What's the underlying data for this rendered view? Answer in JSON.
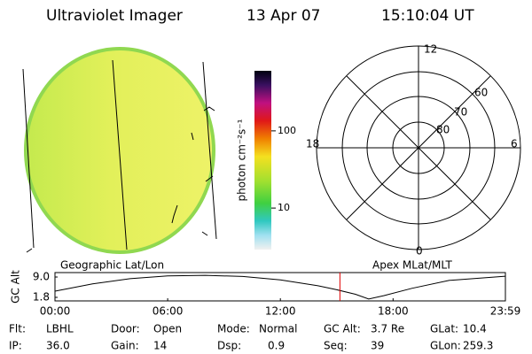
{
  "header": {
    "instrument": "Ultraviolet Imager",
    "date": "13 Apr 07",
    "time": "15:10:04 UT"
  },
  "colorbar": {
    "label": "photon cm⁻²s⁻¹",
    "log": true,
    "lim": [
      2.9,
      600
    ],
    "ticks": [
      10,
      100
    ]
  },
  "polar": {
    "labels": [
      "12",
      "6",
      "0",
      "18"
    ],
    "rings": [
      "60",
      "70",
      "80"
    ]
  },
  "image_caption": "Geographic Lat/Lon",
  "polar_caption": "Apex MLat/MLT",
  "altitude_plot": {
    "ylabel": "GC Alt",
    "x": [
      0,
      2,
      4,
      6,
      8,
      10,
      12,
      14,
      15,
      16,
      16.7,
      17.5,
      19,
      21,
      23.98
    ],
    "values": [
      4.0,
      6.6,
      8.4,
      9.4,
      9.6,
      9.2,
      8.0,
      5.9,
      4.5,
      2.9,
      1.2,
      2.4,
      5.0,
      7.8,
      9.3
    ],
    "xlim": [
      0,
      23.98
    ],
    "ylim": [
      0.55,
      10.57
    ],
    "xticks": [
      {
        "value": 0,
        "label": "00:00"
      },
      {
        "value": 6,
        "label": "06:00"
      },
      {
        "value": 12,
        "label": "12:00"
      },
      {
        "value": 18,
        "label": "18:00"
      },
      {
        "value": 23.98,
        "label": "23:59"
      }
    ],
    "yticks": [
      {
        "value": 9.0,
        "label": "9.0"
      },
      1.8
    ],
    "marker_x": 15.17,
    "marker_color": "#e00000"
  },
  "info": [
    [
      {
        "label": "Flt:",
        "value": "LBHL"
      },
      {
        "label": "Door:",
        "value": "Open"
      },
      {
        "label": "Mode:",
        "value": "Normal"
      },
      {
        "label": "GC Alt:",
        "value": "3.7 Re"
      },
      {
        "label": "GLat:",
        "value": "10.4"
      }
    ],
    [
      {
        "label": "IP:",
        "value": "36.0"
      },
      {
        "label": "Gain:",
        "value": "14"
      },
      {
        "label": "Dsp:",
        "value": "0.9"
      },
      {
        "label": "Seq:",
        "value": "39"
      },
      {
        "label": "GLon:",
        "value": "259.3"
      }
    ]
  ]
}
